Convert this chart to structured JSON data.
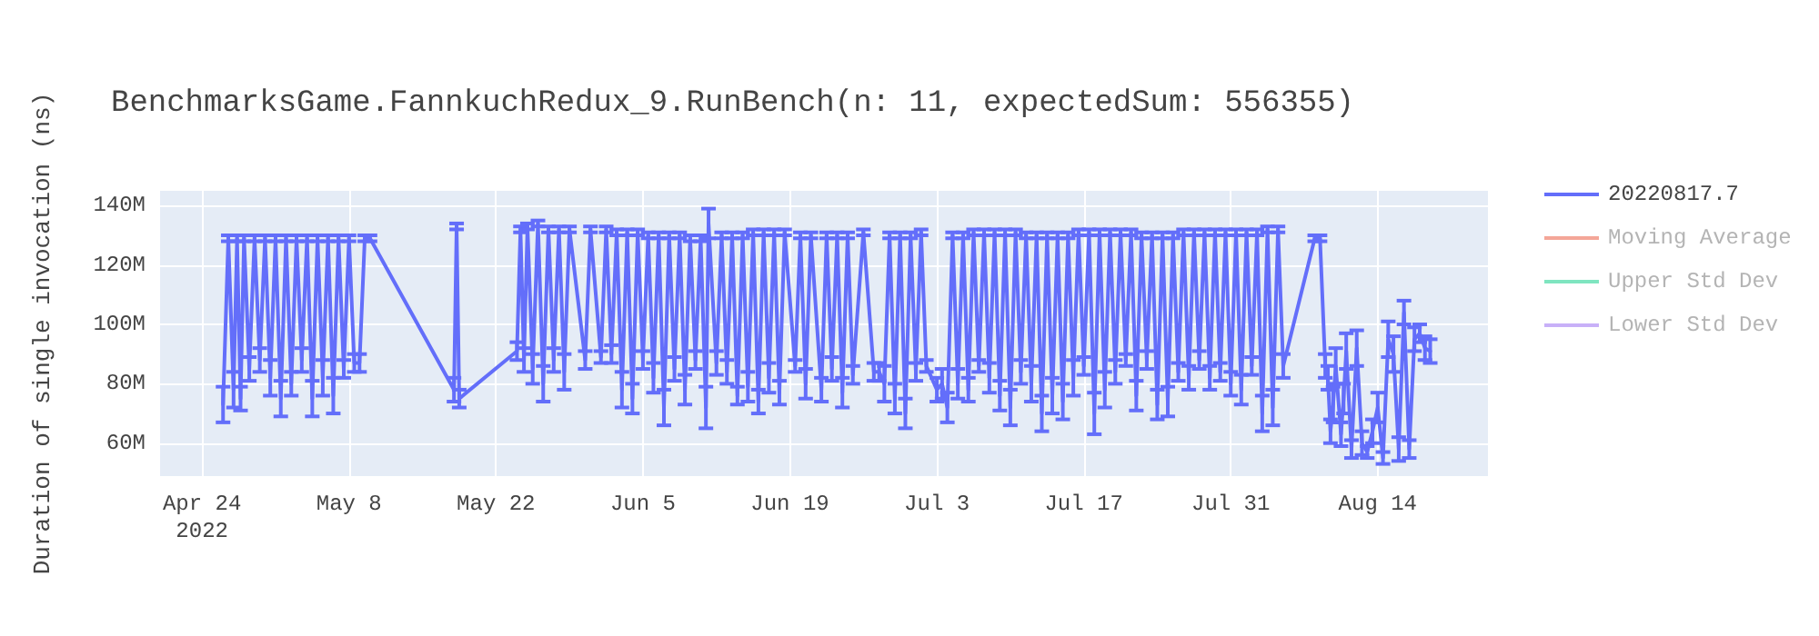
{
  "chart_data": {
    "type": "line",
    "title": "BenchmarksGame.FannkuchRedux_9.RunBench(n: 11, expectedSum: 556355)",
    "ylabel": "Duration of single invocation (ns)",
    "x": [
      "2022-04-26T00:00",
      "2022-04-26T12:00",
      "2022-04-27T00:00",
      "2022-04-27T08:00",
      "2022-04-27T16:00",
      "2022-04-28T00:00",
      "2022-04-28T12:00",
      "2022-04-29T00:00",
      "2022-04-29T12:00",
      "2022-04-30T00:00",
      "2022-04-30T12:00",
      "2022-05-01T00:00",
      "2022-05-01T12:00",
      "2022-05-02T00:00",
      "2022-05-02T12:00",
      "2022-05-03T00:00",
      "2022-05-03T12:00",
      "2022-05-04T00:00",
      "2022-05-04T12:00",
      "2022-05-05T00:00",
      "2022-05-05T12:00",
      "2022-05-06T00:00",
      "2022-05-06T12:00",
      "2022-05-07T00:00",
      "2022-05-07T12:00",
      "2022-05-08T00:00",
      "2022-05-08T12:00",
      "2022-05-09T00:00",
      "2022-05-09T12:00",
      "2022-05-10T00:00",
      "2022-05-18T00:00",
      "2022-05-18T06:00",
      "2022-05-18T12:00",
      "2022-05-24T00:00",
      "2022-05-24T08:00",
      "2022-05-24T16:00",
      "2022-05-25T00:00",
      "2022-05-25T12:00",
      "2022-05-26T00:00",
      "2022-05-26T12:00",
      "2022-05-27T00:00",
      "2022-05-27T12:00",
      "2022-05-28T00:00",
      "2022-05-28T12:00",
      "2022-05-29T00:00",
      "2022-05-30T12:00",
      "2022-05-31T00:00",
      "2022-06-01T00:00",
      "2022-06-01T12:00",
      "2022-06-02T00:00",
      "2022-06-02T12:00",
      "2022-06-03T00:00",
      "2022-06-03T12:00",
      "2022-06-04T00:00",
      "2022-06-04T12:00",
      "2022-06-05T00:00",
      "2022-06-05T12:00",
      "2022-06-06T00:00",
      "2022-06-06T12:00",
      "2022-06-07T00:00",
      "2022-06-07T12:00",
      "2022-06-08T00:00",
      "2022-06-08T12:00",
      "2022-06-09T00:00",
      "2022-06-09T12:00",
      "2022-06-10T00:00",
      "2022-06-10T12:00",
      "2022-06-11T00:00",
      "2022-06-11T06:00",
      "2022-06-12T00:00",
      "2022-06-12T12:00",
      "2022-06-13T00:00",
      "2022-06-13T12:00",
      "2022-06-14T00:00",
      "2022-06-14T12:00",
      "2022-06-15T00:00",
      "2022-06-15T12:00",
      "2022-06-16T00:00",
      "2022-06-16T12:00",
      "2022-06-17T00:00",
      "2022-06-17T12:00",
      "2022-06-18T00:00",
      "2022-06-18T12:00",
      "2022-06-19T12:00",
      "2022-06-20T00:00",
      "2022-06-20T12:00",
      "2022-06-21T00:00",
      "2022-06-22T00:00",
      "2022-06-22T12:00",
      "2022-06-23T00:00",
      "2022-06-23T12:00",
      "2022-06-24T00:00",
      "2022-06-24T12:00",
      "2022-06-25T00:00",
      "2022-06-26T00:00",
      "2022-06-27T00:00",
      "2022-06-27T12:00",
      "2022-06-28T00:00",
      "2022-06-28T12:00",
      "2022-06-29T00:00",
      "2022-06-29T12:00",
      "2022-06-30T00:00",
      "2022-06-30T12:00",
      "2022-07-01T00:00",
      "2022-07-01T12:00",
      "2022-07-02T00:00",
      "2022-07-03T00:00",
      "2022-07-03T12:00",
      "2022-07-04T00:00",
      "2022-07-04T12:00",
      "2022-07-05T00:00",
      "2022-07-05T12:00",
      "2022-07-06T00:00",
      "2022-07-06T12:00",
      "2022-07-07T00:00",
      "2022-07-07T12:00",
      "2022-07-08T00:00",
      "2022-07-08T12:00",
      "2022-07-09T00:00",
      "2022-07-09T12:00",
      "2022-07-10T00:00",
      "2022-07-10T12:00",
      "2022-07-11T00:00",
      "2022-07-11T12:00",
      "2022-07-12T00:00",
      "2022-07-12T12:00",
      "2022-07-13T00:00",
      "2022-07-13T12:00",
      "2022-07-14T00:00",
      "2022-07-14T12:00",
      "2022-07-15T00:00",
      "2022-07-15T12:00",
      "2022-07-16T00:00",
      "2022-07-16T12:00",
      "2022-07-17T00:00",
      "2022-07-17T12:00",
      "2022-07-18T00:00",
      "2022-07-18T12:00",
      "2022-07-19T00:00",
      "2022-07-19T12:00",
      "2022-07-20T00:00",
      "2022-07-20T12:00",
      "2022-07-21T00:00",
      "2022-07-21T12:00",
      "2022-07-22T00:00",
      "2022-07-22T12:00",
      "2022-07-23T00:00",
      "2022-07-23T12:00",
      "2022-07-24T00:00",
      "2022-07-24T12:00",
      "2022-07-25T00:00",
      "2022-07-25T12:00",
      "2022-07-26T00:00",
      "2022-07-26T12:00",
      "2022-07-27T00:00",
      "2022-07-27T12:00",
      "2022-07-28T00:00",
      "2022-07-28T12:00",
      "2022-07-29T00:00",
      "2022-07-29T12:00",
      "2022-07-30T00:00",
      "2022-07-30T12:00",
      "2022-07-31T00:00",
      "2022-07-31T12:00",
      "2022-08-01T00:00",
      "2022-08-01T12:00",
      "2022-08-02T00:00",
      "2022-08-02T12:00",
      "2022-08-03T00:00",
      "2022-08-03T12:00",
      "2022-08-04T00:00",
      "2022-08-04T12:00",
      "2022-08-05T00:00",
      "2022-08-08T00:00",
      "2022-08-08T12:00",
      "2022-08-09T00:00",
      "2022-08-09T06:00",
      "2022-08-09T12:00",
      "2022-08-09T18:00",
      "2022-08-10T00:00",
      "2022-08-10T12:00",
      "2022-08-10T18:00",
      "2022-08-11T00:00",
      "2022-08-11T12:00",
      "2022-08-12T00:00",
      "2022-08-12T12:00",
      "2022-08-13T00:00",
      "2022-08-13T12:00",
      "2022-08-14T00:00",
      "2022-08-14T12:00",
      "2022-08-15T00:00",
      "2022-08-15T12:00",
      "2022-08-16T00:00",
      "2022-08-16T12:00",
      "2022-08-17T00:00",
      "2022-08-17T12:00",
      "2022-08-18T00:00",
      "2022-08-18T12:00",
      "2022-08-19T00:00"
    ],
    "series": [
      {
        "name": "20220817.7",
        "color": "#636efa",
        "values": [
          73000000,
          129000000,
          78000000,
          129000000,
          75000000,
          129000000,
          85000000,
          129000000,
          88000000,
          129000000,
          82000000,
          129000000,
          75000000,
          129000000,
          80000000,
          129000000,
          88000000,
          129000000,
          75000000,
          129000000,
          82000000,
          129000000,
          76000000,
          129000000,
          85000000,
          129000000,
          87000000,
          87000000,
          129000000,
          129000000,
          78000000,
          133000000,
          75000000,
          91000000,
          132000000,
          88000000,
          133000000,
          85000000,
          134000000,
          80000000,
          132000000,
          88000000,
          132000000,
          84000000,
          132000000,
          88000000,
          132000000,
          89000000,
          132000000,
          90000000,
          131000000,
          78000000,
          131000000,
          75000000,
          131000000,
          88000000,
          130000000,
          82000000,
          130000000,
          72000000,
          130000000,
          85000000,
          130000000,
          78000000,
          129000000,
          88000000,
          129000000,
          72000000,
          134000000,
          87000000,
          130000000,
          84000000,
          130000000,
          76000000,
          130000000,
          79000000,
          131000000,
          74000000,
          131000000,
          82000000,
          131000000,
          77000000,
          131000000,
          86000000,
          130000000,
          80000000,
          130000000,
          78000000,
          130000000,
          85000000,
          130000000,
          77000000,
          130000000,
          83000000,
          131000000,
          84000000,
          84000000,
          80000000,
          130000000,
          75000000,
          130000000,
          70000000,
          130000000,
          84000000,
          131000000,
          86000000,
          78000000,
          80000000,
          72000000,
          130000000,
          80000000,
          130000000,
          78000000,
          131000000,
          86000000,
          131000000,
          82000000,
          131000000,
          76000000,
          131000000,
          72000000,
          131000000,
          84000000,
          130000000,
          80000000,
          130000000,
          70000000,
          130000000,
          76000000,
          130000000,
          74000000,
          130000000,
          82000000,
          131000000,
          86000000,
          131000000,
          70000000,
          131000000,
          78000000,
          131000000,
          84000000,
          131000000,
          88000000,
          131000000,
          76000000,
          130000000,
          88000000,
          130000000,
          73000000,
          130000000,
          74000000,
          130000000,
          84000000,
          131000000,
          82000000,
          131000000,
          88000000,
          131000000,
          82000000,
          131000000,
          84000000,
          131000000,
          80000000,
          131000000,
          78000000,
          131000000,
          86000000,
          131000000,
          70000000,
          132000000,
          72000000,
          132000000,
          86000000,
          129000000,
          129000000,
          86000000,
          82000000,
          64000000,
          73000000,
          86000000,
          63000000,
          75000000,
          91000000,
          58000000,
          92000000,
          60000000,
          57000000,
          64000000,
          72000000,
          55000000,
          95000000,
          90000000,
          58000000,
          104000000,
          58000000,
          95000000,
          97000000,
          92000000,
          91000000
        ],
        "errors": [
          6000000,
          1000000,
          6000000,
          1000000,
          4000000,
          1000000,
          4000000,
          1000000,
          4000000,
          1000000,
          6000000,
          1000000,
          6000000,
          1000000,
          4000000,
          1000000,
          4000000,
          1000000,
          6000000,
          1000000,
          6000000,
          1000000,
          6000000,
          1000000,
          3000000,
          1000000,
          3000000,
          3000000,
          1000000,
          1000000,
          4000000,
          1000000,
          3000000,
          3000000,
          1000000,
          4000000,
          1000000,
          5000000,
          1000000,
          6000000,
          1000000,
          4000000,
          1000000,
          6000000,
          1000000,
          3000000,
          1000000,
          2000000,
          1000000,
          3000000,
          1000000,
          6000000,
          1000000,
          5000000,
          1000000,
          3000000,
          1000000,
          5000000,
          1000000,
          6000000,
          1000000,
          4000000,
          1000000,
          5000000,
          1000000,
          3000000,
          1000000,
          7000000,
          5000000,
          4000000,
          1000000,
          4000000,
          1000000,
          3000000,
          1000000,
          5000000,
          1000000,
          4000000,
          1000000,
          5000000,
          1000000,
          4000000,
          1000000,
          2000000,
          1000000,
          5000000,
          1000000,
          4000000,
          1000000,
          4000000,
          1000000,
          5000000,
          1000000,
          3000000,
          1000000,
          3000000,
          3000000,
          6000000,
          1000000,
          5000000,
          1000000,
          5000000,
          1000000,
          3000000,
          1000000,
          2000000,
          4000000,
          5000000,
          5000000,
          1000000,
          5000000,
          1000000,
          4000000,
          1000000,
          2000000,
          1000000,
          5000000,
          1000000,
          5000000,
          1000000,
          6000000,
          1000000,
          4000000,
          1000000,
          6000000,
          1000000,
          6000000,
          1000000,
          6000000,
          1000000,
          6000000,
          1000000,
          6000000,
          1000000,
          3000000,
          1000000,
          7000000,
          1000000,
          6000000,
          1000000,
          4000000,
          1000000,
          2000000,
          1000000,
          5000000,
          1000000,
          3000000,
          1000000,
          5000000,
          1000000,
          5000000,
          1000000,
          3000000,
          1000000,
          4000000,
          1000000,
          3000000,
          1000000,
          4000000,
          1000000,
          3000000,
          1000000,
          4000000,
          1000000,
          5000000,
          1000000,
          3000000,
          1000000,
          6000000,
          1000000,
          6000000,
          1000000,
          4000000,
          1000000,
          1000000,
          4000000,
          4000000,
          4000000,
          6000000,
          6000000,
          4000000,
          5000000,
          6000000,
          3000000,
          6000000,
          4000000,
          2000000,
          4000000,
          5000000,
          2000000,
          6000000,
          6000000,
          4000000,
          4000000,
          3000000,
          4000000,
          3000000,
          4000000,
          4000000
        ]
      },
      {
        "name": "Moving Average",
        "color": "#f4a698",
        "values": [
          null,
          null,
          null,
          null,
          null,
          null,
          null,
          null,
          null,
          null,
          null,
          null,
          null,
          null,
          null,
          null,
          null,
          null,
          null,
          null,
          null,
          null,
          null,
          null,
          null,
          null,
          null,
          null,
          null,
          null,
          null,
          null,
          null,
          null,
          null,
          null,
          null,
          null,
          null,
          null,
          null,
          null,
          null,
          null,
          null,
          null,
          null,
          null,
          null,
          null,
          null,
          null,
          null,
          null,
          null,
          null,
          null,
          null,
          null,
          null,
          null,
          null,
          null,
          null,
          null,
          null,
          null,
          null,
          null,
          null,
          null,
          null,
          null,
          null,
          null,
          null,
          null,
          null,
          null,
          null,
          null,
          null,
          null,
          null,
          null,
          null,
          null,
          null,
          null,
          null,
          null,
          null,
          null,
          null,
          null,
          null,
          null,
          null,
          null,
          null,
          null,
          null,
          null,
          null,
          null,
          null,
          null,
          null,
          null,
          null,
          null,
          null,
          null,
          null,
          null,
          null,
          null,
          null,
          null,
          null,
          null,
          null,
          null,
          null,
          null,
          null,
          null,
          null,
          null,
          null,
          null,
          null,
          null,
          null,
          null,
          null,
          null,
          null,
          null,
          null,
          null,
          null,
          null,
          null,
          null,
          null,
          null,
          null,
          null,
          null,
          null,
          null,
          null,
          null,
          null,
          null,
          null,
          null,
          null,
          null,
          null,
          null,
          null,
          null,
          null,
          null,
          null,
          null,
          null,
          null,
          null,
          null,
          null,
          null,
          null,
          null,
          null,
          null,
          null,
          null,
          null,
          null,
          null,
          null,
          null,
          null,
          null,
          null,
          null,
          null,
          null,
          null,
          null,
          null,
          null,
          null,
          null,
          null,
          null
        ]
      },
      {
        "name": "Upper Std Dev",
        "color": "#7fe5c0",
        "values": [
          null,
          null,
          null,
          null,
          null,
          null,
          null,
          null,
          null,
          null,
          null,
          null,
          null,
          null,
          null,
          null,
          null,
          null,
          null,
          null,
          null,
          null,
          null,
          null,
          null,
          null,
          null,
          null,
          null,
          null,
          null,
          null,
          null,
          null,
          null,
          null,
          null,
          null,
          null,
          null,
          null,
          null,
          null,
          null,
          null,
          null,
          null,
          null,
          null,
          null,
          null,
          null,
          null,
          null,
          null,
          null,
          null,
          null,
          null,
          null,
          null,
          null,
          null,
          null,
          null,
          null,
          null,
          null,
          null,
          null,
          null,
          null,
          null,
          null,
          null,
          null,
          null,
          null,
          null,
          null,
          null,
          null,
          null,
          null,
          null,
          null,
          null,
          null,
          null,
          null,
          null,
          null,
          null,
          null,
          null,
          null,
          null,
          null,
          null,
          null,
          null,
          null,
          null,
          null,
          null,
          null,
          null,
          null,
          null,
          null,
          null,
          null,
          null,
          null,
          null,
          null,
          null,
          null,
          null,
          null,
          null,
          null,
          null,
          null,
          null,
          null,
          null,
          null,
          null,
          null,
          null,
          null,
          null,
          null,
          null,
          null,
          null,
          null,
          null,
          null,
          null,
          null,
          null,
          null,
          null,
          null,
          null,
          null,
          null,
          null,
          null,
          null,
          null,
          null,
          null,
          null,
          null,
          null,
          null,
          null,
          null,
          null,
          null,
          null,
          null,
          null,
          null,
          null,
          null,
          null,
          null,
          null,
          null,
          null,
          null,
          null,
          null,
          null,
          null,
          null,
          null,
          null,
          null,
          null,
          null,
          null,
          null,
          null,
          null,
          null,
          null,
          null,
          null,
          null,
          null,
          null,
          null,
          null,
          null
        ]
      },
      {
        "name": "Lower Std Dev",
        "color": "#c8b0f8",
        "values": [
          null,
          null,
          null,
          null,
          null,
          null,
          null,
          null,
          null,
          null,
          null,
          null,
          null,
          null,
          null,
          null,
          null,
          null,
          null,
          null,
          null,
          null,
          null,
          null,
          null,
          null,
          null,
          null,
          null,
          null,
          null,
          null,
          null,
          null,
          null,
          null,
          null,
          null,
          null,
          null,
          null,
          null,
          null,
          null,
          null,
          null,
          null,
          null,
          null,
          null,
          null,
          null,
          null,
          null,
          null,
          null,
          null,
          null,
          null,
          null,
          null,
          null,
          null,
          null,
          null,
          null,
          null,
          null,
          null,
          null,
          null,
          null,
          null,
          null,
          null,
          null,
          null,
          null,
          null,
          null,
          null,
          null,
          null,
          null,
          null,
          null,
          null,
          null,
          null,
          null,
          null,
          null,
          null,
          null,
          null,
          null,
          null,
          null,
          null,
          null,
          null,
          null,
          null,
          null,
          null,
          null,
          null,
          null,
          null,
          null,
          null,
          null,
          null,
          null,
          null,
          null,
          null,
          null,
          null,
          null,
          null,
          null,
          null,
          null,
          null,
          null,
          null,
          null,
          null,
          null,
          null,
          null,
          null,
          null,
          null,
          null,
          null,
          null,
          null,
          null,
          null,
          null,
          null,
          null,
          null,
          null,
          null,
          null,
          null,
          null,
          null,
          null,
          null,
          null,
          null,
          null,
          null,
          null,
          null,
          null,
          null,
          null,
          null,
          null,
          null,
          null,
          null,
          null,
          null,
          null,
          null,
          null,
          null,
          null,
          null,
          null,
          null,
          null,
          null,
          null,
          null,
          null,
          null,
          null,
          null,
          null,
          null,
          null,
          null,
          null,
          null,
          null,
          null,
          null,
          null,
          null,
          null,
          null,
          null
        ]
      }
    ],
    "xlim": [
      "2022-04-20T00:00",
      "2022-08-24T12:00"
    ],
    "xticks": [
      {
        "value": "2022-04-24",
        "label": "Apr 24\n2022"
      },
      {
        "value": "2022-05-08",
        "label": "May 8"
      },
      {
        "value": "2022-05-22",
        "label": "May 22"
      },
      {
        "value": "2022-06-05",
        "label": "Jun 5"
      },
      {
        "value": "2022-06-19",
        "label": "Jun 19"
      },
      {
        "value": "2022-07-03",
        "label": "Jul 3"
      },
      {
        "value": "2022-07-17",
        "label": "Jul 17"
      },
      {
        "value": "2022-07-31",
        "label": "Jul 31"
      },
      {
        "value": "2022-08-14",
        "label": "Aug 14"
      }
    ],
    "ylim": [
      48900000,
      145000000
    ],
    "yticks": [
      {
        "value": 60000000,
        "label": "60M"
      },
      {
        "value": 80000000,
        "label": "80M"
      },
      {
        "value": 100000000,
        "label": "100M"
      },
      {
        "value": 120000000,
        "label": "120M"
      },
      {
        "value": 140000000,
        "label": "140M"
      }
    ],
    "grid": true,
    "legend": "top right",
    "marker": "none",
    "line_style": "solid"
  }
}
